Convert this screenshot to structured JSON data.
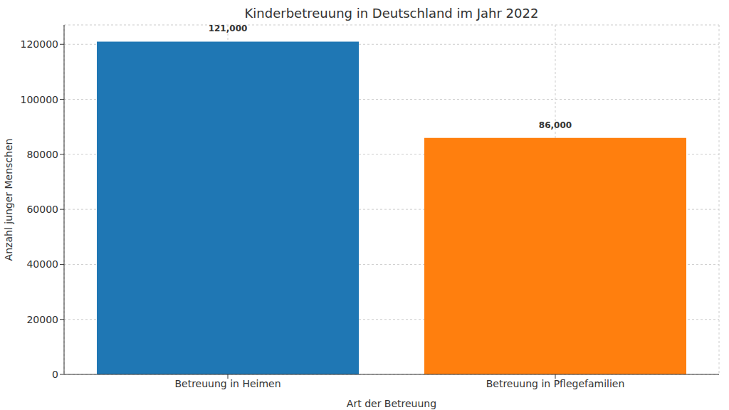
{
  "chart_data": {
    "type": "bar",
    "title": "Kinderbetreuung in Deutschland im Jahr 2022",
    "x_label": "Art der Betreuung",
    "y_label": "Anzahl junger Menschen",
    "categories": [
      "Betreuung in Heimen",
      "Betreuung in Pflegefamilien"
    ],
    "values": [
      121000,
      86000
    ],
    "value_labels": [
      "121,000",
      "86,000"
    ],
    "colors": [
      "#1f77b4",
      "#ff7f0e"
    ],
    "ylim": [
      0,
      127050
    ],
    "yticks": [
      0,
      20000,
      40000,
      60000,
      80000,
      100000,
      120000
    ],
    "grid": true,
    "data_labels": true
  }
}
